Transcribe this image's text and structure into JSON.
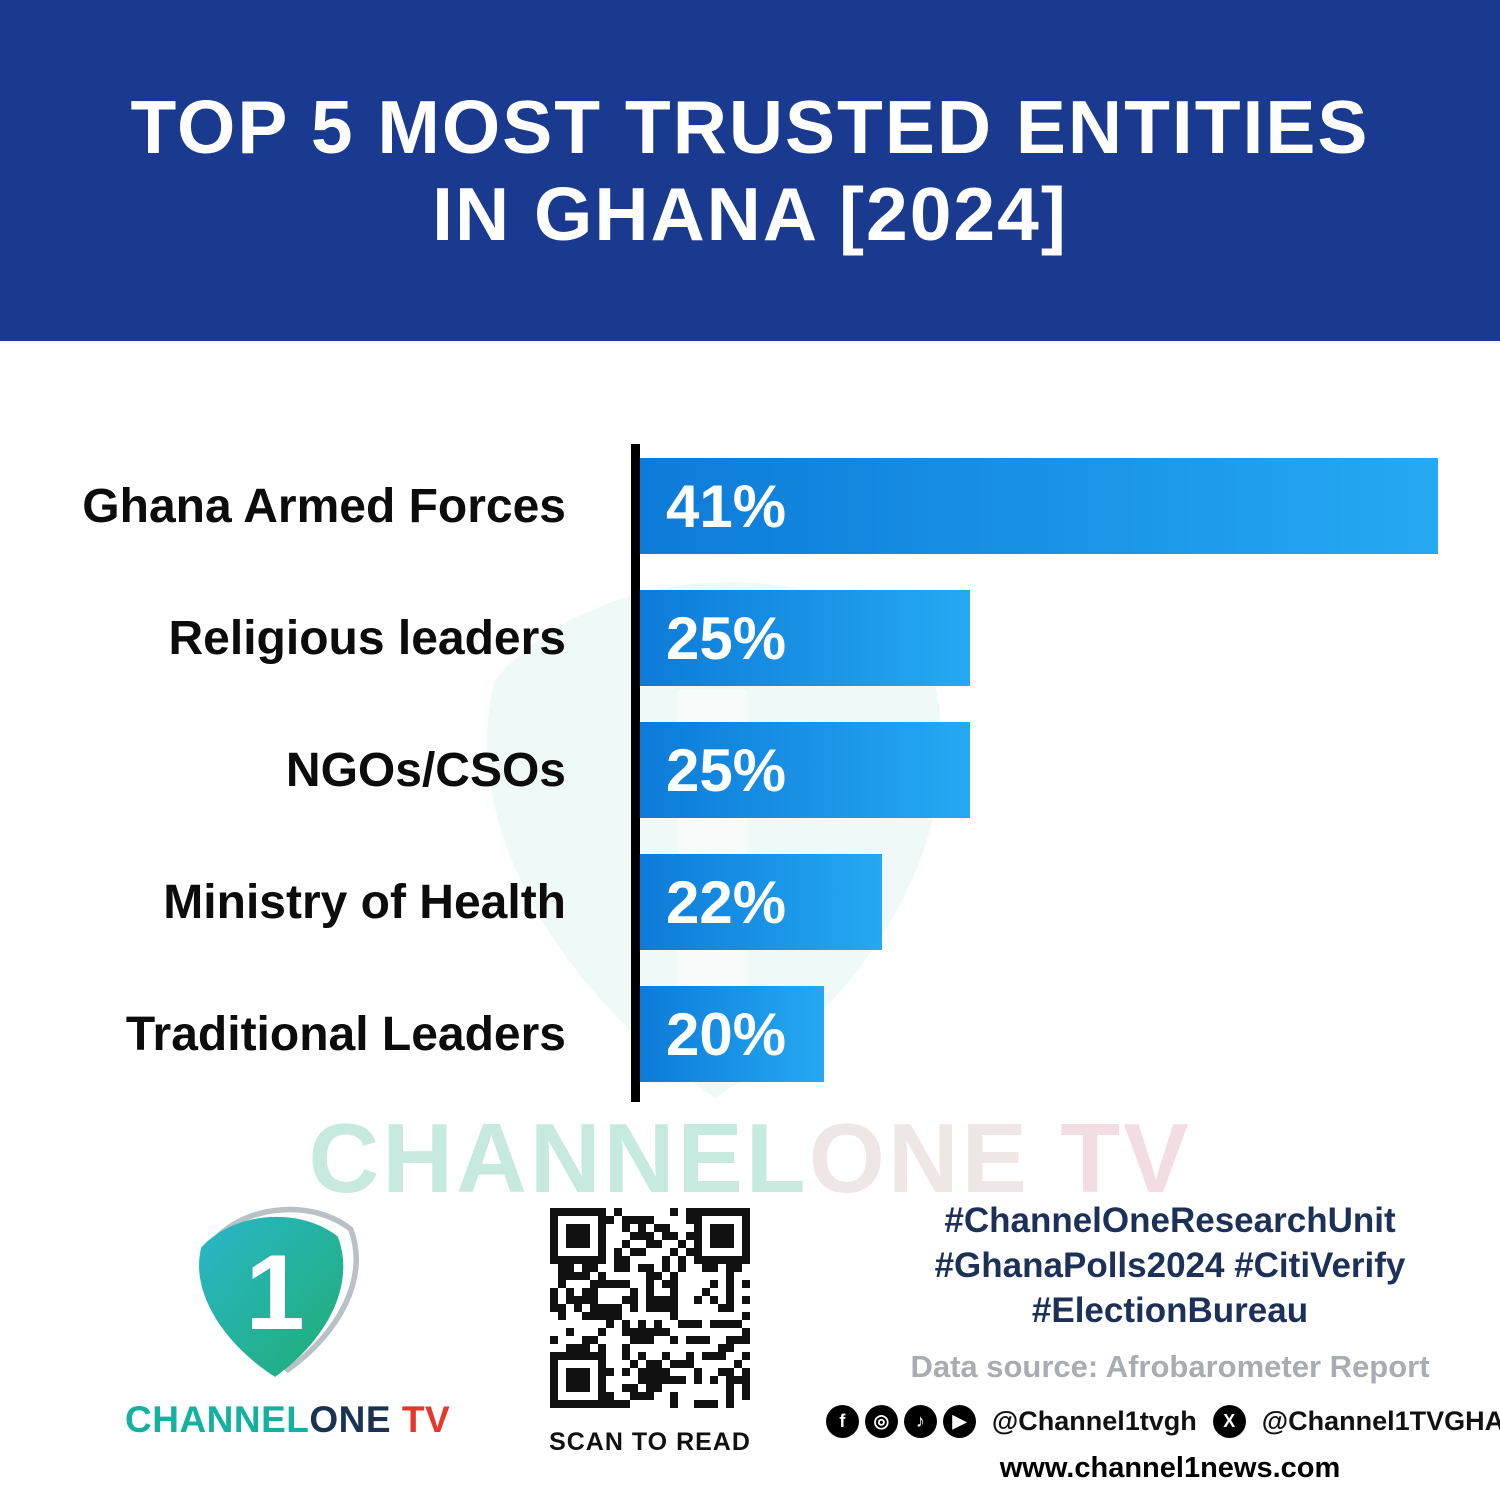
{
  "header": {
    "title_line1": "TOP 5 MOST TRUSTED ENTITIES",
    "title_line2": "IN GHANA [2024]"
  },
  "chart_data": {
    "type": "bar",
    "orientation": "horizontal",
    "title": "Top 5 Most Trusted Entities in Ghana [2024]",
    "categories": [
      "Ghana Armed Forces",
      "Religious leaders",
      "NGOs/CSOs",
      "Ministry of Health",
      "Traditional Leaders"
    ],
    "values": [
      41,
      25,
      25,
      22,
      20
    ],
    "value_labels": [
      "41%",
      "25%",
      "25%",
      "22%",
      "20%"
    ],
    "unit": "percent",
    "legend": false,
    "grid": false,
    "value_axis_visible": false,
    "display_widths_pct": [
      100,
      41.4,
      41.4,
      30.3,
      23.1
    ],
    "bar_gradient": [
      "#0d7bd8",
      "#25a9f2"
    ]
  },
  "watermark": {
    "part1": "CHANNEL",
    "part2": "ONE",
    "part3": " TV"
  },
  "footer": {
    "logo": {
      "numeral": "1",
      "channel": "CHANNEL",
      "one": "ONE",
      "tv": " TV"
    },
    "qr": {
      "caption": "SCAN TO READ"
    },
    "hashtags": {
      "line1": "#ChannelOneResearchUnit",
      "line2": "#GhanaPolls2024 #CitiVerify",
      "line3": "#ElectionBureau"
    },
    "data_source": "Data source: Afrobarometer Report",
    "social": {
      "handle_main": "@Channel1tvgh",
      "handle_x": "@Channel1TVGHA",
      "glyphs": {
        "facebook": "f",
        "instagram": "◎",
        "tiktok": "♪",
        "youtube": "▶",
        "x": "X"
      }
    },
    "website": "www.channel1news.com"
  },
  "colors": {
    "header_bg": "#1a3a8f",
    "bar_gradient_start": "#0d7bd8",
    "bar_gradient_end": "#25a9f2",
    "hashtag_text": "#1d3057",
    "source_text": "#a8adb3",
    "logo_teal": "#14b0a0",
    "logo_dark": "#1b3350",
    "logo_red": "#e8362b"
  }
}
